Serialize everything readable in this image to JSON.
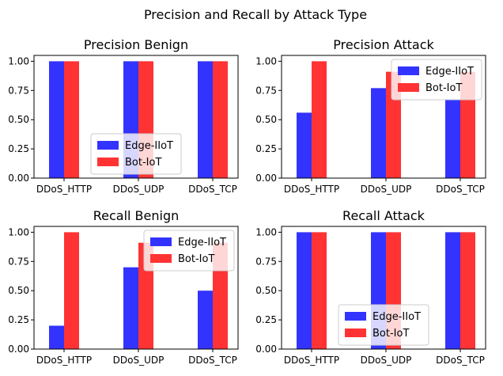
{
  "suptitle": "Precision and Recall by Attack Type",
  "colors": {
    "edge": "#3333ff",
    "bot": "#ff3333",
    "frame": "#000000",
    "legend_border": "#cccccc"
  },
  "chart_data": [
    {
      "type": "bar",
      "title": "Precision Benign",
      "categories": [
        "DDoS_HTTP",
        "DDoS_UDP",
        "DDoS_TCP"
      ],
      "series": [
        {
          "name": "Edge-IIoT",
          "values": [
            1.0,
            1.0,
            1.0
          ]
        },
        {
          "name": "Bot-IoT",
          "values": [
            1.0,
            1.0,
            1.0
          ]
        }
      ],
      "yticks": [
        "0.00",
        "0.25",
        "0.50",
        "0.75",
        "1.00"
      ],
      "ylim": [
        0,
        1.05
      ],
      "legend": "lower-center"
    },
    {
      "type": "bar",
      "title": "Precision Attack",
      "categories": [
        "DDoS_HTTP",
        "DDoS_UDP",
        "DDoS_TCP"
      ],
      "series": [
        {
          "name": "Edge-IIoT",
          "values": [
            0.56,
            0.77,
            0.67
          ]
        },
        {
          "name": "Bot-IoT",
          "values": [
            1.0,
            0.91,
            0.91
          ]
        }
      ],
      "yticks": [
        "0.00",
        "0.25",
        "0.50",
        "0.75",
        "1.00"
      ],
      "ylim": [
        0,
        1.05
      ],
      "legend": "upper-right"
    },
    {
      "type": "bar",
      "title": "Recall Benign",
      "categories": [
        "DDoS_HTTP",
        "DDoS_UDP",
        "DDoS_TCP"
      ],
      "series": [
        {
          "name": "Edge-IIoT",
          "values": [
            0.2,
            0.7,
            0.5
          ]
        },
        {
          "name": "Bot-IoT",
          "values": [
            1.0,
            0.91,
            0.91
          ]
        }
      ],
      "yticks": [
        "0.00",
        "0.25",
        "0.50",
        "0.75",
        "1.00"
      ],
      "ylim": [
        0,
        1.05
      ],
      "legend": "upper-right"
    },
    {
      "type": "bar",
      "title": "Recall Attack",
      "categories": [
        "DDoS_HTTP",
        "DDoS_UDP",
        "DDoS_TCP"
      ],
      "series": [
        {
          "name": "Edge-IIoT",
          "values": [
            1.0,
            1.0,
            1.0
          ]
        },
        {
          "name": "Bot-IoT",
          "values": [
            1.0,
            1.0,
            1.0
          ]
        }
      ],
      "yticks": [
        "0.00",
        "0.25",
        "0.50",
        "0.75",
        "1.00"
      ],
      "ylim": [
        0,
        1.05
      ],
      "legend": "lower-center"
    }
  ]
}
